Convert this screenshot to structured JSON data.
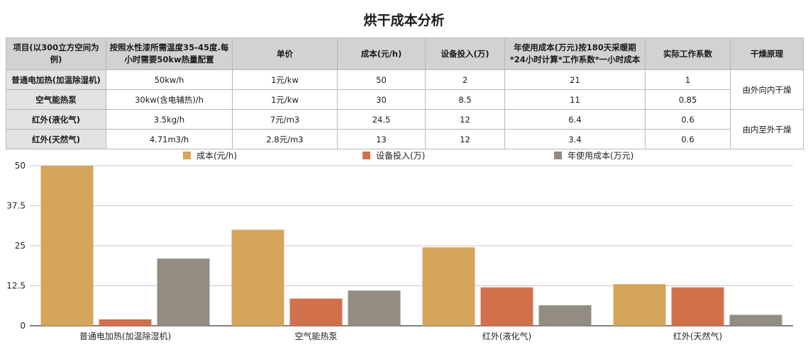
{
  "title": "烘干成本分析",
  "table": {
    "headers": [
      "项目(以300立方空间为例)",
      "按照水性漆所需温度35-45度.每小时需要50kw热量配置",
      "单价",
      "成本(元/h)",
      "设备投入(万)",
      "年使用成本(万元)按180天采暖期*24小时计算*工作系数*一小时成本",
      "实际工作系数",
      "干燥原理"
    ],
    "rows": [
      [
        "普通电加热(加温除湿机)",
        "50kw/h",
        "1元/kw",
        "50",
        "2",
        "21",
        "1"
      ],
      [
        "空气能热泵",
        "30kw(含电辅热)/h",
        "1元/kw",
        "30",
        "8.5",
        "11",
        "0.85"
      ],
      [
        "红外(液化气)",
        "3.5kg/h",
        "7元/m3",
        "24.5",
        "12",
        "6.4",
        "0.6"
      ],
      [
        "红外(天然气)",
        "4.71m3/h",
        "2.8元/m3",
        "13",
        "12",
        "3.4",
        "0.6"
      ]
    ],
    "principles": [
      "由外向内干燥",
      "由内至外干燥"
    ]
  },
  "chart_data": {
    "type": "bar",
    "categories": [
      "普通电加热(加温除湿机)",
      "空气能热泵",
      "红外(液化气)",
      "红外(天然气)"
    ],
    "series": [
      {
        "name": "成本(元/h)",
        "values": [
          50,
          30,
          24.5,
          13
        ],
        "color": "#d4a55a"
      },
      {
        "name": "设备投入(万)",
        "values": [
          2,
          8.5,
          12,
          12
        ],
        "color": "#d0714c"
      },
      {
        "name": "年使用成本(万元)",
        "values": [
          21,
          11,
          6.4,
          3.4
        ],
        "color": "#938c82"
      }
    ],
    "yticks": [
      "0",
      "12.5",
      "25",
      "37.5",
      "50"
    ],
    "ylim": [
      0,
      50
    ],
    "grid": true,
    "legend": "top"
  }
}
